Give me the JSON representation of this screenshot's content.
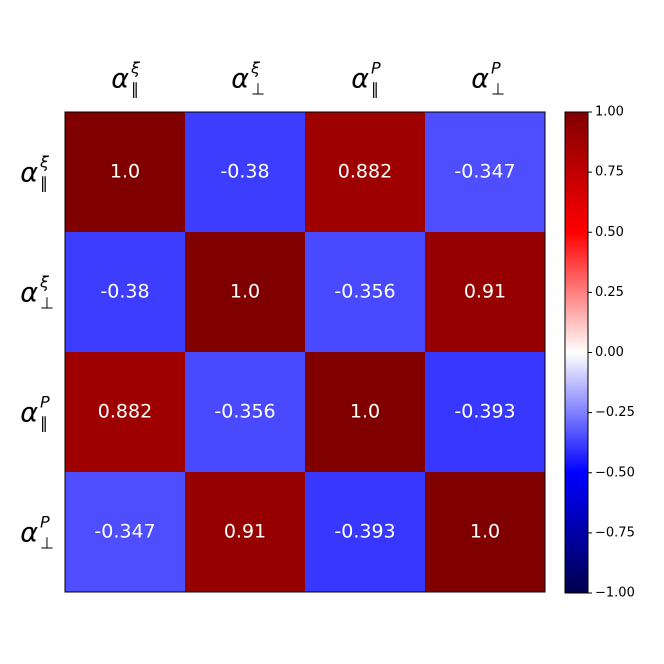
{
  "chart_data": {
    "type": "heatmap",
    "row_labels": [
      {
        "symbol": "α",
        "sup": "ξ",
        "sub": "∥"
      },
      {
        "symbol": "α",
        "sup": "ξ",
        "sub": "⊥"
      },
      {
        "symbol": "α",
        "sup": "P",
        "sub": "∥"
      },
      {
        "symbol": "α",
        "sup": "P",
        "sub": "⊥"
      }
    ],
    "col_labels": [
      {
        "symbol": "α",
        "sup": "ξ",
        "sub": "∥"
      },
      {
        "symbol": "α",
        "sup": "ξ",
        "sub": "⊥"
      },
      {
        "symbol": "α",
        "sup": "P",
        "sub": "∥"
      },
      {
        "symbol": "α",
        "sup": "P",
        "sub": "⊥"
      }
    ],
    "values": [
      [
        1.0,
        -0.38,
        0.882,
        -0.347
      ],
      [
        -0.38,
        1.0,
        -0.356,
        0.91
      ],
      [
        0.882,
        -0.356,
        1.0,
        -0.393
      ],
      [
        -0.347,
        0.91,
        -0.393,
        1.0
      ]
    ],
    "value_labels": [
      [
        "1.0",
        "-0.38",
        "0.882",
        "-0.347"
      ],
      [
        "-0.38",
        "1.0",
        "-0.356",
        "0.91"
      ],
      [
        "0.882",
        "-0.356",
        "1.0",
        "-0.393"
      ],
      [
        "-0.347",
        "0.91",
        "-0.393",
        "1.0"
      ]
    ],
    "colormap": "seismic",
    "clim": [
      -1,
      1
    ],
    "cticks": [
      {
        "value": 1,
        "label": "1.00"
      },
      {
        "value": 0.75,
        "label": "0.75"
      },
      {
        "value": 0.5,
        "label": "0.50"
      },
      {
        "value": 0.25,
        "label": "0.25"
      },
      {
        "value": 0,
        "label": "0.00"
      },
      {
        "value": -0.25,
        "label": "−0.25"
      },
      {
        "value": -0.5,
        "label": "−0.50"
      },
      {
        "value": -0.75,
        "label": "−0.75"
      },
      {
        "value": -1,
        "label": "−1.00"
      }
    ]
  }
}
